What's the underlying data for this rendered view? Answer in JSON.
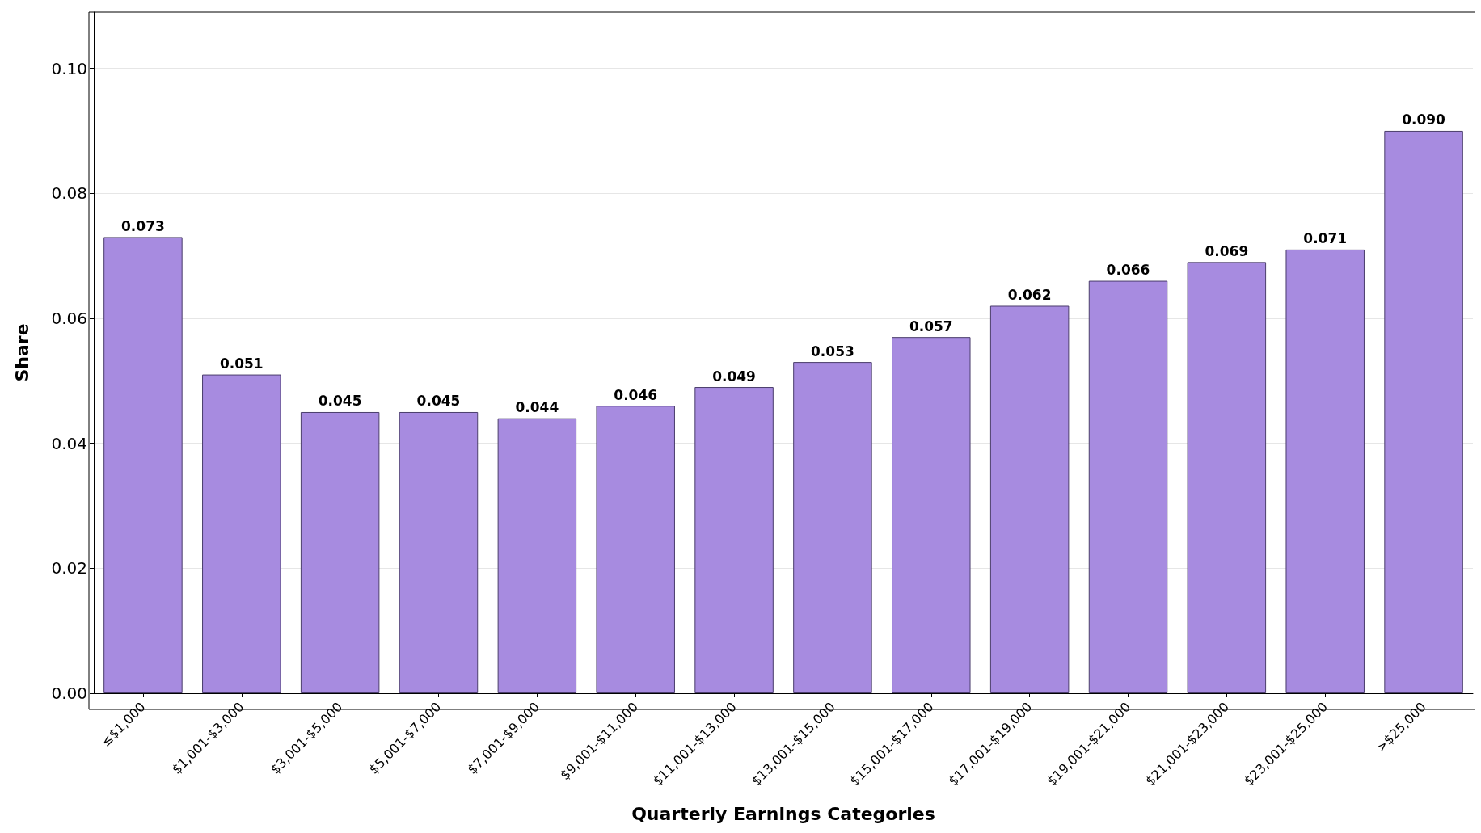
{
  "chart_data": {
    "type": "bar",
    "xlabel": "Quarterly Earnings Categories",
    "ylabel": "Share",
    "categories": [
      "≤$1,000",
      "$1,001-$3,000",
      "$3,001-$5,000",
      "$5,001-$7,000",
      "$7,001-$9,000",
      "$9,001-$11,000",
      "$11,001-$13,000",
      "$13,001-$15,000",
      "$15,001-$17,000",
      "$17,001-$19,000",
      "$19,001-$21,000",
      "$21,001-$23,000",
      "$23,001-$25,000",
      ">$25,000"
    ],
    "values": [
      0.073,
      0.051,
      0.045,
      0.045,
      0.044,
      0.046,
      0.049,
      0.053,
      0.057,
      0.062,
      0.066,
      0.069,
      0.071,
      0.09
    ],
    "value_labels": [
      "0.073",
      "0.051",
      "0.045",
      "0.045",
      "0.044",
      "0.046",
      "0.049",
      "0.053",
      "0.057",
      "0.062",
      "0.066",
      "0.069",
      "0.071",
      "0.090"
    ],
    "color": "#a78be0",
    "ylim": [
      0,
      0.109
    ],
    "yticks": [
      {
        "value": 0,
        "label": "0.00"
      },
      {
        "value": 0.02,
        "label": "0.02"
      },
      {
        "value": 0.04,
        "label": "0.04"
      },
      {
        "value": 0.06,
        "label": "0.06"
      },
      {
        "value": 0.08,
        "label": "0.08"
      },
      {
        "value": 0.1,
        "label": "0.10"
      }
    ],
    "grid": "y"
  }
}
